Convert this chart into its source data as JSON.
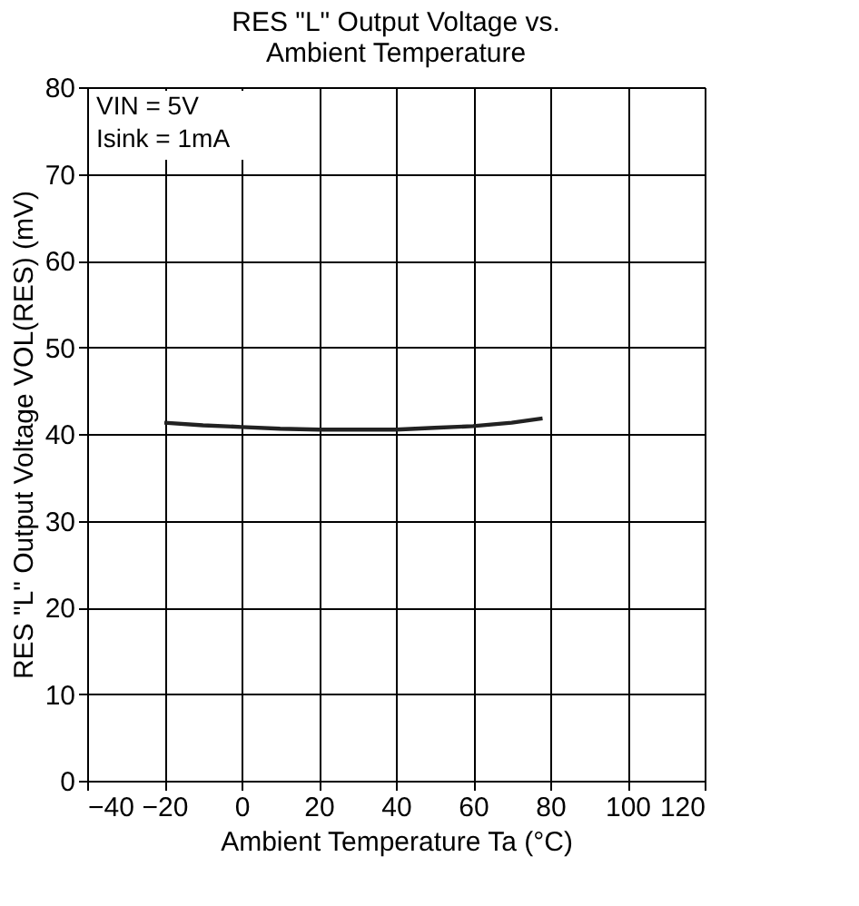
{
  "chart_data": {
    "type": "line",
    "title": "RES \"L\" Output Voltage vs.\nAmbient Temperature",
    "xlabel": "Ambient Temperature   Ta   (°C)",
    "ylabel": "RES \"L\" Output Voltage   VOL(RES)   (mV)",
    "x": [
      -20,
      -10,
      0,
      10,
      20,
      30,
      40,
      50,
      60,
      70,
      78
    ],
    "series": [
      {
        "color": "#222222",
        "values": [
          41.3,
          41.0,
          40.8,
          40.6,
          40.5,
          40.5,
          40.5,
          40.7,
          40.9,
          41.3,
          41.8
        ]
      }
    ],
    "xlim": [
      -40,
      120
    ],
    "xticks": [
      -40,
      -20,
      0,
      20,
      40,
      60,
      80,
      100,
      120
    ],
    "ylim": [
      0,
      80
    ],
    "yticks": [
      0,
      10,
      20,
      30,
      40,
      50,
      60,
      70,
      80
    ],
    "grid": true,
    "annotations": [
      "VIN = 5V",
      "Isink = 1mA"
    ]
  }
}
